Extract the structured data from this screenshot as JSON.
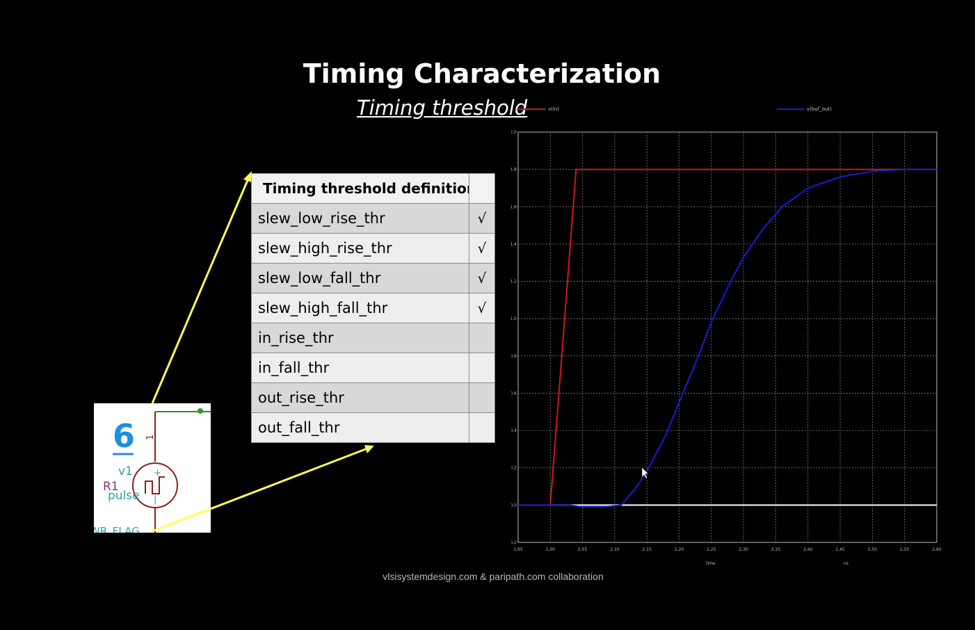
{
  "slide": {
    "title": "Timing Characterization",
    "subtitle": "Timing threshold",
    "footer": "vlsisystemdesign.com & paripath.com collaboration"
  },
  "threshold_table": {
    "header": "Timing threshold definitions",
    "rows": [
      {
        "name": "slew_low_rise_thr",
        "check": "√"
      },
      {
        "name": "slew_high_rise_thr",
        "check": "√"
      },
      {
        "name": "slew_low_fall_thr",
        "check": "√"
      },
      {
        "name": "slew_high_fall_thr",
        "check": "√"
      },
      {
        "name": "in_rise_thr",
        "check": ""
      },
      {
        "name": "in_fall_thr",
        "check": ""
      },
      {
        "name": "out_rise_thr",
        "check": ""
      },
      {
        "name": "out_fall_thr",
        "check": ""
      }
    ]
  },
  "schematic": {
    "number": "6",
    "pin": "1",
    "source_name": "v1",
    "resistor_name": "R1",
    "source_type": "pulse",
    "flag_text": "WR_FLAG"
  },
  "colors": {
    "arrow": "#ffff55",
    "input_trace": "#d01818",
    "output_trace": "#1a1ad8",
    "zero_line": "#ffffff",
    "grid": "#808080"
  },
  "chart_data": {
    "type": "line",
    "x_label": "time",
    "x_unit": "ns",
    "xlim": [
      1.95,
      2.6
    ],
    "ylim": [
      -0.2,
      2.0
    ],
    "x_ticks": [
      "1,95",
      "2,00",
      "2,05",
      "2,10",
      "2,15",
      "2,20",
      "2,25",
      "2,30",
      "2,35",
      "2,40",
      "2,45",
      "2,50",
      "2,55",
      "2,60"
    ],
    "y_ticks": [
      "-0,2",
      "0,0",
      "0,2",
      "0,4",
      "0,6",
      "0,8",
      "1,0",
      "1,2",
      "1,4",
      "1,6",
      "1,8",
      "2,0"
    ],
    "grid": true,
    "legend_position": "top",
    "series": [
      {
        "name": "v(in)",
        "x": [
          1.95,
          2.0,
          2.04,
          2.6
        ],
        "y": [
          0.0,
          0.0,
          1.8,
          1.8
        ]
      },
      {
        "name": "v(buf_out)",
        "x": [
          1.95,
          2.03,
          2.05,
          2.08,
          2.11,
          2.13,
          2.15,
          2.18,
          2.2,
          2.23,
          2.25,
          2.28,
          2.3,
          2.33,
          2.36,
          2.4,
          2.45,
          2.5,
          2.55,
          2.6
        ],
        "y": [
          0.0,
          0.0,
          -0.01,
          -0.01,
          0.0,
          0.08,
          0.18,
          0.38,
          0.55,
          0.8,
          0.98,
          1.2,
          1.33,
          1.48,
          1.6,
          1.7,
          1.76,
          1.79,
          1.8,
          1.8
        ]
      }
    ]
  }
}
